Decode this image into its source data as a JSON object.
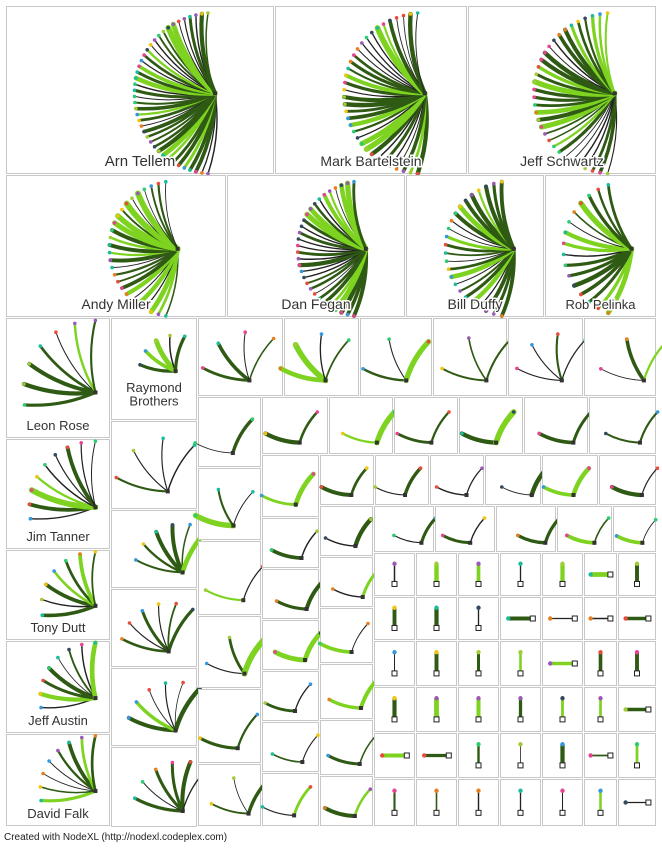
{
  "agents": [
    {
      "name": "Arn Tellem"
    },
    {
      "name": "Mark Bartelstein"
    },
    {
      "name": "Jeff Schwartz"
    },
    {
      "name": "Andy Miller"
    },
    {
      "name": "Dan Fegan"
    },
    {
      "name": "Bill Duffy"
    },
    {
      "name": "Rob Pelinka"
    },
    {
      "name": "Leon Rose"
    },
    {
      "name": "Raymond Brothers"
    },
    {
      "name": "Jim Tanner"
    },
    {
      "name": "Tony Dutt"
    },
    {
      "name": "Jeff Austin"
    },
    {
      "name": "David Falk"
    }
  ],
  "colors": {
    "edge_dark": "#2f5a14",
    "edge_light": "#7ed321",
    "edge_thin": "#222222",
    "panel_border": "#c8c8c8",
    "node_palette": [
      "#e74c3c",
      "#f1c40f",
      "#9b59b6",
      "#3498db",
      "#2ecc71",
      "#e67e22",
      "#1abc9c",
      "#e84393",
      "#34495e",
      "#a3cb38"
    ]
  },
  "footer": {
    "credit": "Created with NodeXL (http://nodexl.codeplex.com)"
  }
}
